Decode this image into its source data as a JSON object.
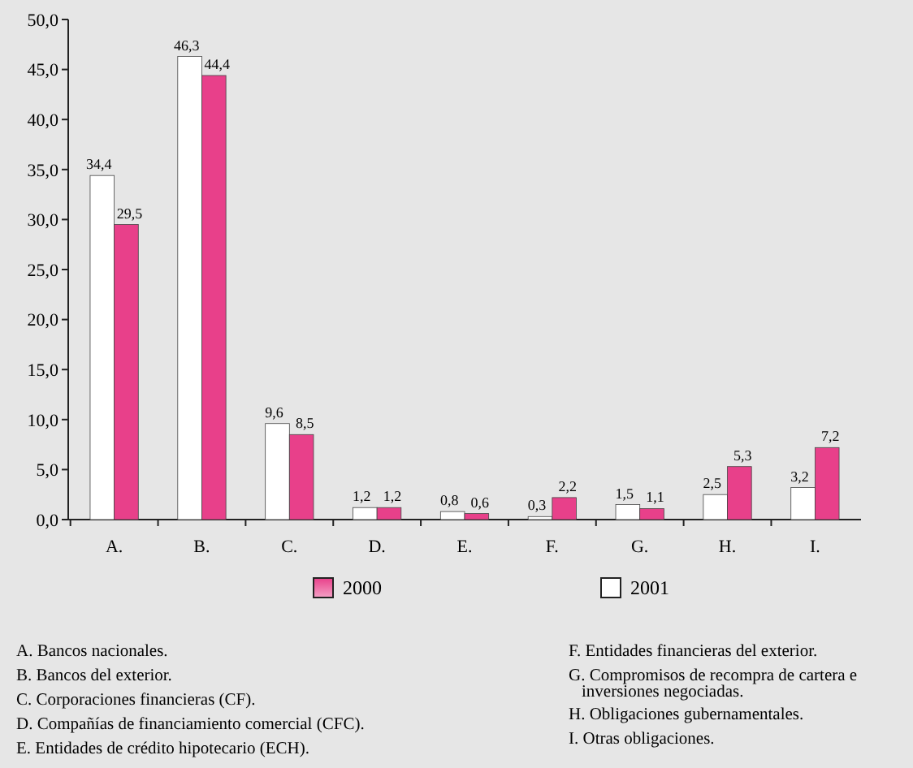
{
  "chart_data": {
    "type": "bar",
    "categories": [
      "A.",
      "B.",
      "C.",
      "D.",
      "E.",
      "F.",
      "G.",
      "H.",
      "I."
    ],
    "series": [
      {
        "name": "2001",
        "color": "#ffffff",
        "values": [
          34.4,
          46.3,
          9.6,
          1.2,
          0.8,
          0.3,
          1.5,
          2.5,
          3.2
        ],
        "value_labels": [
          "34,4",
          "46,3",
          "9,6",
          "1,2",
          "0,8",
          "0,3",
          "1,5",
          "2,5",
          "3,2"
        ]
      },
      {
        "name": "2000",
        "color": "#e8408a",
        "values": [
          29.5,
          44.4,
          8.5,
          1.2,
          0.6,
          2.2,
          1.1,
          5.3,
          7.2
        ],
        "value_labels": [
          "29,5",
          "44,4",
          "8,5",
          "1,2",
          "0,6",
          "2,2",
          "1,1",
          "5,3",
          "7,2"
        ]
      }
    ],
    "ylim": [
      0,
      50
    ],
    "yticks": [
      {
        "value": 0,
        "label": "0,0"
      },
      {
        "value": 5,
        "label": "5,0"
      },
      {
        "value": 10,
        "label": "10,0"
      },
      {
        "value": 15,
        "label": "15,0"
      },
      {
        "value": 20,
        "label": "20,0"
      },
      {
        "value": 25,
        "label": "25,0"
      },
      {
        "value": 30,
        "label": "30,0"
      },
      {
        "value": 35,
        "label": "35,0"
      },
      {
        "value": 40,
        "label": "40,0"
      },
      {
        "value": 45,
        "label": "45,0"
      },
      {
        "value": 50,
        "label": "50,0"
      }
    ],
    "grid": false,
    "legend": "bottom",
    "annotations": [
      "A. Bancos nacionales.",
      "B. Bancos del exterior.",
      "C. Corporaciones financieras (CF).",
      "D. Compañías de financiamiento comercial (CFC).",
      "E. Entidades de crédito hipotecario (ECH).",
      "F. Entidades financieras del exterior.",
      "G. Compromisos de recompra de cartera e inversiones negociadas.",
      "H. Obligaciones gubernamentales.",
      "I. Otras obligaciones."
    ]
  }
}
